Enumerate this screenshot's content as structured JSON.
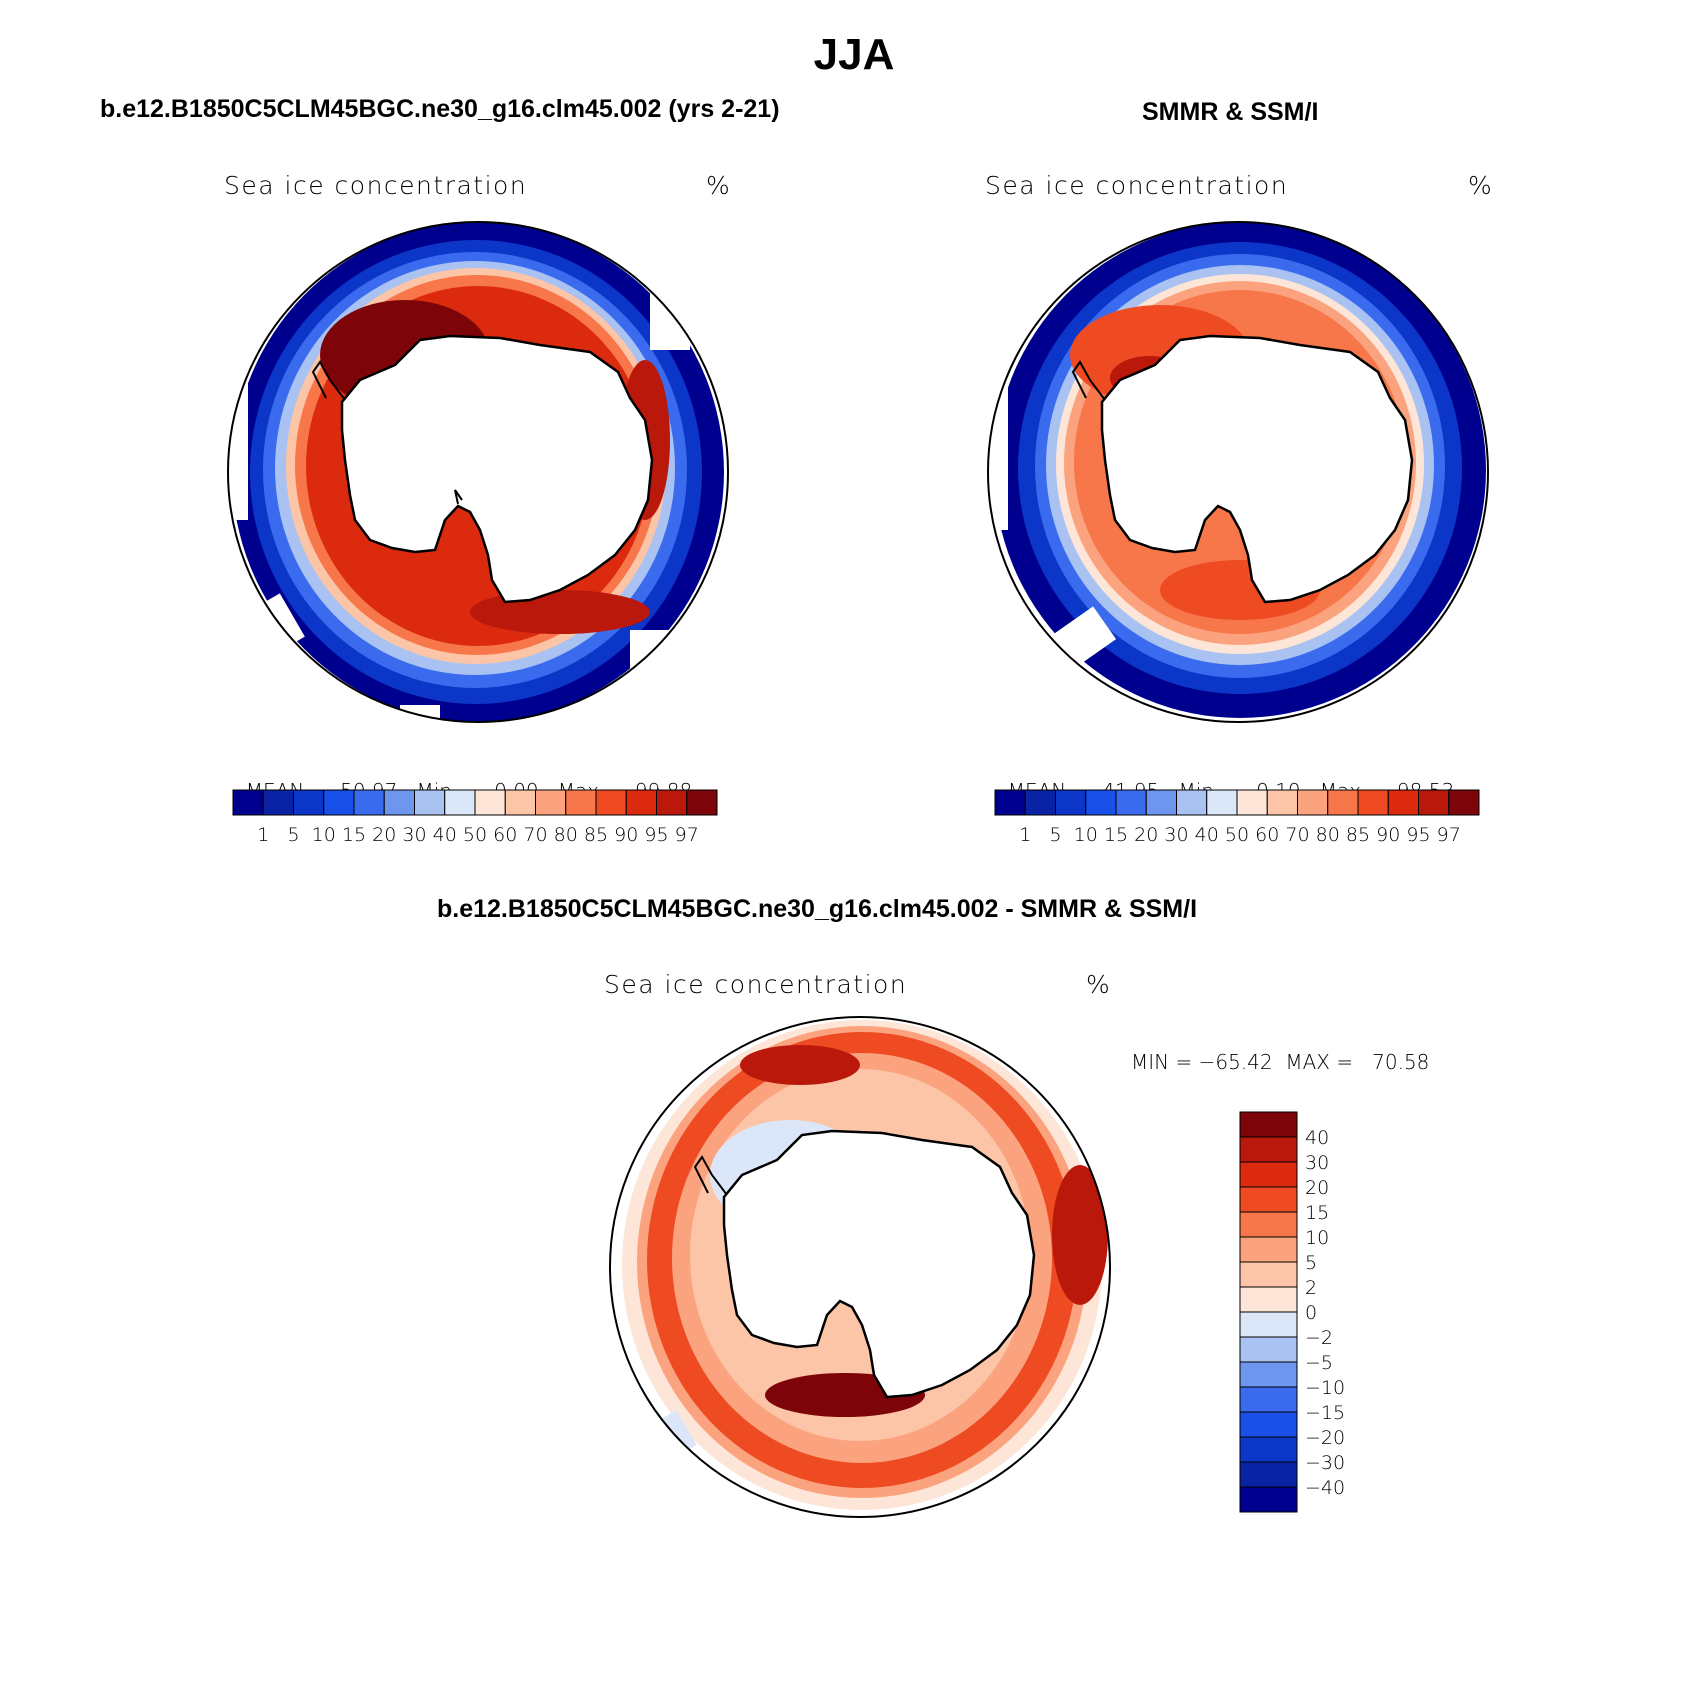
{
  "title": "JJA",
  "panels": [
    {
      "id": "model",
      "subtitle": "b.e12.B1850C5CLM45BGC.ne30_g16.clm45.002 (yrs 2-21)",
      "label_left": "Sea ice concentration",
      "label_right": "%",
      "stats": {
        "mean_label": "MEAN=",
        "mean": "50.97",
        "min_label": "Min=",
        "min": "0.00",
        "max_label": "Max=",
        "max": "99.88"
      }
    },
    {
      "id": "obs",
      "subtitle": "SMMR & SSM/I",
      "label_left": "Sea ice concentration",
      "label_right": "%",
      "stats": {
        "mean_label": "MEAN=",
        "mean": "41.95",
        "min_label": "Min=",
        "min": "0.10",
        "max_label": "Max=",
        "max": "98.53"
      }
    },
    {
      "id": "diff",
      "subtitle": "b.e12.B1850C5CLM45BGC.ne30_g16.clm45.002 - SMMR & SSM/I",
      "label_left": "Sea ice concentration",
      "label_right": "%",
      "minmax": "MIN = −65.42  MAX =   70.58"
    }
  ],
  "colorbar_abs": {
    "levels": [
      "1",
      "5",
      "10",
      "15",
      "20",
      "30",
      "40",
      "50",
      "60",
      "70",
      "80",
      "85",
      "90",
      "95",
      "97"
    ],
    "colors": [
      "#00008f",
      "#0a23a5",
      "#0c36c8",
      "#1850e8",
      "#3a6bee",
      "#6e96ee",
      "#a9c2f2",
      "#dbe7f8",
      "#fde6d8",
      "#fcc5a8",
      "#fba37f",
      "#f7764a",
      "#ee4b22",
      "#dc2a0f",
      "#b9180b",
      "#7d0509"
    ]
  },
  "colorbar_diff": {
    "levels": [
      "40",
      "30",
      "20",
      "15",
      "10",
      "5",
      "2",
      "0",
      "−2",
      "−5",
      "−10",
      "−15",
      "−20",
      "−30",
      "−40"
    ],
    "colors": [
      "#7d0509",
      "#b9180b",
      "#dc2a0f",
      "#ee4b22",
      "#f7764a",
      "#fba37f",
      "#fcc5a8",
      "#fde6d8",
      "#dbe7f8",
      "#a9c2f2",
      "#6e96ee",
      "#3a6bee",
      "#1850e8",
      "#0c36c8",
      "#0a23a5",
      "#00008f"
    ]
  }
}
